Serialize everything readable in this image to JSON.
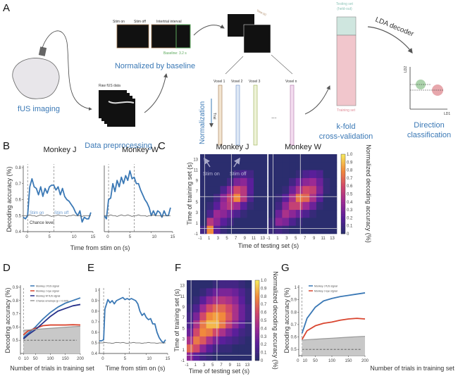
{
  "panel_letters": {
    "a": "A",
    "b": "B",
    "c": "C",
    "d": "D",
    "e": "E",
    "f": "F",
    "g": "G"
  },
  "panel_a": {
    "fus_imaging": "fUS imaging",
    "raw_fus_data": "Raw fUS data",
    "data_preprocessing": "Data preprocessing",
    "stim_on": "Stim on",
    "stim_off": "Stim off",
    "intertrial_interval": "Intertrial interval",
    "baseline": "Baseline: 3.2 s",
    "normalized_by_baseline": "Normalized by baseline",
    "time_label": "Time (s)",
    "voxels": [
      "Voxel 1",
      "Voxel 2",
      "Voxel 3",
      "Voxel n"
    ],
    "ellipsis": "...",
    "normalization": "Normalization",
    "trial": "Trial",
    "testing_set": "Testing set",
    "held_out": "(held-out)",
    "training_set": "Training set",
    "kfold": "k-fold",
    "cross_validation": "cross-validation",
    "lda_decoder": "LDA decoder",
    "ld1": "LD1",
    "ld2": "LD2",
    "direction": "Direction",
    "classification": "classification",
    "colors": {
      "blue_text": "#3a78b5",
      "green": "#5aa85a",
      "red": "#d0505a",
      "testing": "#cfe6df",
      "training": "#f1c6cc"
    }
  },
  "chart_data": [
    {
      "id": "B-J",
      "type": "line",
      "title": "Monkey J",
      "xlabel": "Time from stim on (s)",
      "ylabel": "Decoding accuracy (%)",
      "xlim": [
        -1,
        15
      ],
      "ylim": [
        0.4,
        0.8
      ],
      "xticks": [
        0,
        5,
        10,
        15
      ],
      "yticks": [
        0.4,
        0.5,
        0.6,
        0.7,
        0.8
      ],
      "vlines": [
        0,
        6
      ],
      "annotations": [
        "Stim on",
        "Stim off",
        "Chance level"
      ],
      "x": [
        -1,
        -0.5,
        0,
        0.5,
        1,
        1.5,
        2,
        2.5,
        3,
        3.5,
        4,
        4.5,
        5,
        5.5,
        6,
        6.5,
        7,
        7.5,
        8,
        8.5,
        9,
        9.5,
        10,
        10.5,
        11,
        11.5,
        12,
        12.5,
        13,
        13.5,
        14,
        14.5
      ],
      "series": [
        {
          "values": [
            0.49,
            0.48,
            0.5,
            0.68,
            0.73,
            0.68,
            0.67,
            0.63,
            0.68,
            0.62,
            0.67,
            0.64,
            0.68,
            0.69,
            0.69,
            0.66,
            0.68,
            0.63,
            0.67,
            0.62,
            0.6,
            0.59,
            0.57,
            0.55,
            0.52,
            0.5,
            0.53,
            0.46,
            0.49,
            0.48,
            0.48,
            0.52
          ],
          "color": "#3a78b5"
        },
        {
          "values": [
            0.5,
            0.5,
            0.5,
            0.505,
            0.5,
            0.5,
            0.495,
            0.5,
            0.505,
            0.5,
            0.5,
            0.505,
            0.5,
            0.495,
            0.5,
            0.5,
            0.505,
            0.5,
            0.5,
            0.5,
            0.495,
            0.5,
            0.5,
            0.505,
            0.5,
            0.5,
            0.5,
            0.495,
            0.5,
            0.5,
            0.5,
            0.5
          ],
          "color": "#555555"
        }
      ]
    },
    {
      "id": "B-W",
      "type": "line",
      "title": "Monkey W",
      "xlim": [
        -1,
        15
      ],
      "ylim": [
        0.4,
        0.8
      ],
      "xticks": [
        0,
        5,
        10,
        15
      ],
      "vlines": [
        0,
        6
      ],
      "x": [
        -1,
        -0.5,
        0,
        0.5,
        1,
        1.5,
        2,
        2.5,
        3,
        3.5,
        4,
        4.5,
        5,
        5.5,
        6,
        6.5,
        7,
        7.5,
        8,
        8.5,
        9,
        9.5,
        10,
        10.5,
        11,
        11.5,
        12,
        12.5,
        13,
        13.5,
        14,
        14.5
      ],
      "series": [
        {
          "values": [
            0.5,
            0.48,
            0.6,
            0.61,
            0.7,
            0.65,
            0.72,
            0.68,
            0.74,
            0.7,
            0.75,
            0.72,
            0.78,
            0.73,
            0.74,
            0.7,
            0.7,
            0.66,
            0.63,
            0.6,
            0.58,
            0.55,
            0.5,
            0.53,
            0.5,
            0.53,
            0.52,
            0.49,
            0.53,
            0.5,
            0.5,
            0.55
          ],
          "color": "#3a78b5"
        },
        {
          "values": [
            0.5,
            0.5,
            0.5,
            0.505,
            0.5,
            0.5,
            0.495,
            0.5,
            0.505,
            0.5,
            0.5,
            0.505,
            0.5,
            0.495,
            0.5,
            0.5,
            0.505,
            0.5,
            0.5,
            0.5,
            0.495,
            0.5,
            0.5,
            0.505,
            0.5,
            0.5,
            0.5,
            0.495,
            0.5,
            0.5,
            0.5,
            0.5
          ],
          "color": "#555555"
        }
      ]
    },
    {
      "id": "C-J",
      "type": "heatmap",
      "title": "Monkey J",
      "xlabel": "Time of testing set (s)",
      "ylabel": "Time of training set (s)",
      "xticks": [
        -1,
        1,
        3,
        5,
        7,
        9,
        11,
        13
      ],
      "yticks": [
        -1,
        1,
        3,
        5,
        7,
        9,
        11,
        13
      ],
      "range": [
        -1,
        14
      ],
      "lines": [
        0,
        6
      ],
      "annotations": [
        "Stim on",
        "Stim off"
      ],
      "rows_top_to_bottom": [
        [
          0,
          0,
          0,
          0,
          0,
          0,
          0,
          0,
          0,
          0
        ],
        [
          0,
          0,
          0,
          0,
          0,
          0,
          0,
          0,
          0,
          0
        ],
        [
          0,
          0,
          0,
          0,
          0,
          0.1,
          0.15,
          0.1,
          0,
          0
        ],
        [
          0,
          0,
          0,
          0,
          0.1,
          0.3,
          0.35,
          0.2,
          0,
          0
        ],
        [
          0,
          0,
          0,
          0.15,
          0.35,
          0.6,
          0.5,
          0.2,
          0,
          0
        ],
        [
          0,
          0,
          0.1,
          0.35,
          0.55,
          0.8,
          0.5,
          0.15,
          0,
          0
        ],
        [
          0,
          0.05,
          0.2,
          0.4,
          0.5,
          0.4,
          0.2,
          0.05,
          0,
          0
        ],
        [
          0,
          0.15,
          0.4,
          0.35,
          0.25,
          0.15,
          0.05,
          0,
          0,
          0
        ],
        [
          0,
          0.5,
          0.35,
          0.2,
          0.1,
          0,
          0,
          0,
          0,
          0
        ],
        [
          0.1,
          0.8,
          0.2,
          0.05,
          0,
          0,
          0,
          0,
          0,
          0
        ]
      ]
    },
    {
      "id": "C-W",
      "type": "heatmap",
      "title": "Monkey W",
      "xticks": [
        -1,
        1,
        3,
        5,
        7,
        9,
        11,
        13
      ],
      "range": [
        -1,
        14
      ],
      "lines": [
        0,
        6
      ],
      "colorbar": {
        "label": "Normalized decoding accuracy (%)",
        "ticks": [
          "0",
          "0.1",
          "0.2",
          "0.3",
          "0.4",
          "0.5",
          "0.6",
          "0.7",
          "0.8",
          "0.9",
          "1.0"
        ]
      },
      "rows_top_to_bottom": [
        [
          0,
          0,
          0,
          0,
          0,
          0,
          0,
          0,
          0,
          0
        ],
        [
          0,
          0,
          0,
          0,
          0,
          0,
          0,
          0,
          0,
          0
        ],
        [
          0,
          0,
          0,
          0,
          0.05,
          0.15,
          0.2,
          0.15,
          0,
          0
        ],
        [
          0,
          0,
          0,
          0.1,
          0.25,
          0.35,
          0.4,
          0.25,
          0.05,
          0
        ],
        [
          0,
          0,
          0.05,
          0.25,
          0.45,
          0.6,
          0.55,
          0.3,
          0.05,
          0
        ],
        [
          0,
          0.05,
          0.2,
          0.45,
          0.75,
          0.7,
          0.45,
          0.2,
          0,
          0
        ],
        [
          0,
          0.1,
          0.35,
          0.55,
          0.55,
          0.4,
          0.25,
          0.05,
          0,
          0
        ],
        [
          0,
          0.25,
          0.45,
          0.35,
          0.25,
          0.15,
          0.05,
          0,
          0,
          0
        ],
        [
          0.05,
          0.35,
          0.3,
          0.15,
          0.05,
          0,
          0,
          0,
          0,
          0
        ],
        [
          0.05,
          0.1,
          0.05,
          0,
          0,
          0,
          0,
          0,
          0,
          0
        ]
      ]
    },
    {
      "id": "D",
      "type": "line",
      "xlabel": "Number of trials in training set",
      "ylabel": "Decoding accuracy (%)",
      "xlim": [
        0,
        200
      ],
      "ylim": [
        0.4,
        0.9
      ],
      "xticks": [
        0,
        10,
        50,
        100,
        150,
        200
      ],
      "yticks": [
        0.5,
        0.6,
        0.7,
        0.8,
        0.9
      ],
      "vline": 10,
      "chance_dashed": 0.5,
      "x": [
        10,
        25,
        50,
        75,
        100,
        125,
        150,
        175,
        200
      ],
      "legend_position": "top-left",
      "series": [
        {
          "name": "Monkey J fUS signal",
          "color": "#3a78b5",
          "values": [
            0.52,
            0.55,
            0.6,
            0.66,
            0.71,
            0.75,
            0.78,
            0.8,
            0.82
          ]
        },
        {
          "name": "Monkey J eye signal",
          "color": "#d9452f",
          "values": [
            0.54,
            0.57,
            0.59,
            0.61,
            0.615,
            0.615,
            0.615,
            0.617,
            0.615
          ]
        },
        {
          "name": "Monkey W fUS signal",
          "color": "#27318a",
          "values": [
            0.51,
            0.54,
            0.58,
            0.63,
            0.68,
            0.72,
            0.74,
            0.76,
            0.77
          ]
        },
        {
          "name": "Chance envelope (p < 0.005)",
          "color": "#999999",
          "values": [
            0.575,
            0.578,
            0.582,
            0.586,
            0.59,
            0.594,
            0.598,
            0.602,
            0.605
          ],
          "fill": "#c8c8c8"
        }
      ]
    },
    {
      "id": "E",
      "type": "line",
      "xlabel": "Time from stim on (s)",
      "xlim": [
        -1,
        15
      ],
      "ylim": [
        0.4,
        1
      ],
      "xticks": [
        0,
        5,
        10,
        15
      ],
      "yticks": [
        0.4,
        0.5,
        0.6,
        0.7,
        0.8,
        0.9,
        1
      ],
      "vlines": [
        0,
        6
      ],
      "x": [
        -1,
        -0.5,
        0,
        0.3,
        1,
        1.5,
        2,
        2.5,
        3,
        4,
        4.5,
        5,
        5.5,
        6,
        6.5,
        7,
        7.5,
        8,
        8.5,
        9,
        9.5,
        10,
        10.5,
        11,
        11.5,
        12,
        12.5,
        13,
        13.5,
        14,
        14.5
      ],
      "series": [
        {
          "color": "#3a78b5",
          "values": [
            0.52,
            0.52,
            0.53,
            0.82,
            0.91,
            0.88,
            0.9,
            0.87,
            0.9,
            0.92,
            0.93,
            0.91,
            0.92,
            0.91,
            0.92,
            0.91,
            0.9,
            0.87,
            0.8,
            0.76,
            0.78,
            0.74,
            0.72,
            0.73,
            0.68,
            0.68,
            0.6,
            0.55,
            0.52,
            0.5,
            0.53
          ]
        },
        {
          "color": "#555555",
          "values": [
            0.5,
            0.5,
            0.5,
            0.505,
            0.5,
            0.5,
            0.495,
            0.5,
            0.505,
            0.5,
            0.505,
            0.5,
            0.495,
            0.5,
            0.5,
            0.505,
            0.5,
            0.5,
            0.5,
            0.495,
            0.5,
            0.5,
            0.505,
            0.5,
            0.5,
            0.5,
            0.495,
            0.5,
            0.5,
            0.5,
            0.5
          ]
        }
      ]
    },
    {
      "id": "F",
      "type": "heatmap",
      "xlabel": "Time of testing set (s)",
      "ylabel": "Time of training set (s)",
      "xticks": [
        -1,
        1,
        3,
        5,
        7,
        9,
        11,
        13
      ],
      "yticks": [
        -1,
        1,
        3,
        5,
        7,
        9,
        11,
        13
      ],
      "range": [
        -1,
        14
      ],
      "lines": [
        0,
        6
      ],
      "colorbar": {
        "label": "Normalized decoding accuracy (%)",
        "ticks": [
          "0",
          "0.1",
          "0.2",
          "0.3",
          "0.4",
          "0.5",
          "0.6",
          "0.7",
          "0.8",
          "0.9",
          "1.0"
        ]
      },
      "rows_top_to_bottom": [
        [
          0,
          0,
          0,
          0,
          0.05,
          0.1,
          0.1,
          0.1,
          0.05,
          0
        ],
        [
          0,
          0,
          0.05,
          0.15,
          0.25,
          0.3,
          0.3,
          0.25,
          0.15,
          0.05
        ],
        [
          0,
          0.05,
          0.2,
          0.35,
          0.45,
          0.5,
          0.45,
          0.35,
          0.2,
          0.05
        ],
        [
          0.05,
          0.15,
          0.4,
          0.6,
          0.7,
          0.7,
          0.6,
          0.45,
          0.25,
          0.1
        ],
        [
          0.1,
          0.3,
          0.6,
          0.8,
          0.85,
          0.8,
          0.65,
          0.45,
          0.25,
          0.1
        ],
        [
          0.15,
          0.45,
          0.75,
          0.9,
          0.9,
          0.75,
          0.55,
          0.35,
          0.2,
          0.05
        ],
        [
          0.25,
          0.6,
          0.8,
          0.75,
          0.6,
          0.45,
          0.3,
          0.2,
          0.1,
          0.05
        ],
        [
          0.45,
          0.75,
          0.65,
          0.45,
          0.3,
          0.2,
          0.15,
          0.1,
          0.05,
          0
        ],
        [
          0.7,
          0.6,
          0.35,
          0.2,
          0.1,
          0.05,
          0.05,
          0,
          0,
          0
        ],
        [
          0.35,
          0.2,
          0.1,
          0.05,
          0,
          0,
          0,
          0,
          0,
          0
        ]
      ]
    },
    {
      "id": "G",
      "type": "line",
      "xlabel": "Number of trials in training set",
      "ylabel": "Decoding accuracy (%)",
      "xlim": [
        0,
        200
      ],
      "ylim": [
        0.45,
        1.0
      ],
      "xticks": [
        0,
        10,
        50,
        100,
        150,
        200
      ],
      "yticks": [
        0.5,
        0.6,
        0.7,
        0.8,
        0.9,
        1.0
      ],
      "vline": 10,
      "chance_dashed": 0.5,
      "x": [
        10,
        25,
        50,
        75,
        100,
        125,
        150,
        175,
        200
      ],
      "legend_position": "top-left",
      "series": [
        {
          "name": "Monkey J fUS signal",
          "color": "#3a78b5",
          "values": [
            0.63,
            0.75,
            0.84,
            0.89,
            0.91,
            0.925,
            0.935,
            0.945,
            0.955
          ]
        },
        {
          "name": "Monkey J eye signal",
          "color": "#d9452f",
          "values": [
            0.58,
            0.65,
            0.69,
            0.71,
            0.72,
            0.735,
            0.745,
            0.75,
            0.745
          ]
        },
        {
          "color": "#999999",
          "values": [
            0.575,
            0.578,
            0.582,
            0.586,
            0.59,
            0.594,
            0.598,
            0.602,
            0.605
          ],
          "fill": "#c8c8c8"
        }
      ]
    }
  ]
}
